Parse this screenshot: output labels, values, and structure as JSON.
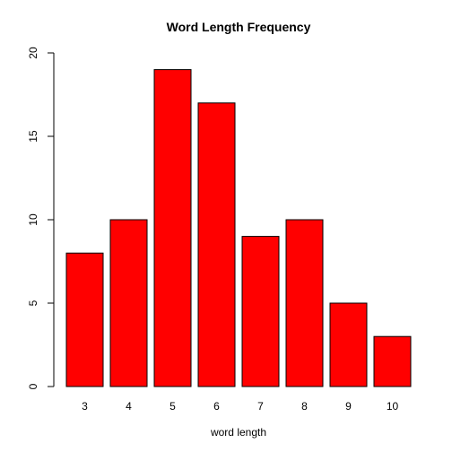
{
  "chart_data": {
    "type": "bar",
    "title": "Word Length Frequency",
    "xlabel": "word length",
    "ylabel": "",
    "categories": [
      "3",
      "4",
      "5",
      "6",
      "7",
      "8",
      "9",
      "10"
    ],
    "values": [
      8,
      10,
      19,
      17,
      9,
      10,
      5,
      3
    ],
    "ylim": [
      0,
      20
    ],
    "yticks": [
      0,
      5,
      10,
      15,
      20
    ],
    "bar_color": "#ff0000",
    "grid": false,
    "legend": "none"
  }
}
